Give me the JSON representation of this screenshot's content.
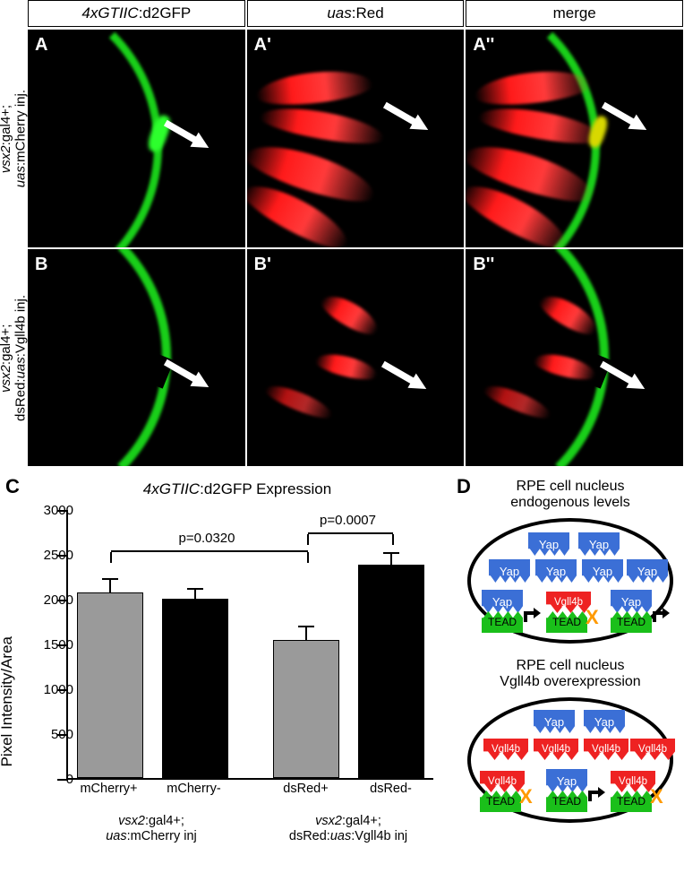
{
  "columns": [
    {
      "label_italic": "4xGTIIC",
      "label_plain": ":d2GFP"
    },
    {
      "label_italic": "uas",
      "label_plain": ":Red"
    },
    {
      "label_italic": "",
      "label_plain": "merge"
    }
  ],
  "rows": [
    {
      "label_html": "<span class='it'>vsx2</span>:gal4+;<br><span class='it'>uas</span>:mCherry inj.",
      "panels": [
        "A",
        "A'",
        "A''"
      ],
      "green": true,
      "red": true
    },
    {
      "label_html": "<span class='it'>vsx2</span>:gal4+;<br>dsRed:<span class='it'>uas</span>:Vgll4b inj.",
      "panels": [
        "B",
        "B'",
        "B''"
      ],
      "green": true,
      "red": true
    }
  ],
  "chart": {
    "letter": "C",
    "title_italic": "4xGTIIC",
    "title_plain": ":d2GFP Expression",
    "y_label": "Pixel Intensity/Area",
    "y_max": 3000,
    "y_ticks": [
      0,
      500,
      1000,
      1500,
      2000,
      2500,
      3000
    ],
    "bars": [
      {
        "label": "mCherry+",
        "value": 2075,
        "err": 160,
        "fill": "#9a9a9a"
      },
      {
        "label": "mCherry-",
        "value": 2000,
        "err": 120,
        "fill": "#000000"
      },
      {
        "label": "dsRed+",
        "value": 1540,
        "err": 160,
        "fill": "#9a9a9a"
      },
      {
        "label": "dsRed-",
        "value": 2380,
        "err": 140,
        "fill": "#000000"
      }
    ],
    "group_sub": [
      "<span class='it'>vsx2</span>:gal4+;<br><span class='it'>uas</span>:mCherry inj",
      "<span class='it'>vsx2</span>:gal4+;<br>dsRed:<span class='it'>uas</span>:Vgll4b inj"
    ],
    "sig": [
      {
        "text": "p=0.0320",
        "from_bar": 0,
        "to_bar": 2,
        "y": 2560
      },
      {
        "text": "p=0.0007",
        "from_bar": 2,
        "to_bar": 3,
        "y": 2760
      }
    ]
  },
  "diagram": {
    "letter": "D",
    "top_title": "RPE cell nucleus<br>endogenous levels",
    "bottom_title": "RPE cell nucleus<br>Vgll4b overexpression",
    "labels": {
      "yap": "Yap",
      "vgll": "Vgll4b",
      "tead": "TEAD"
    },
    "colors": {
      "yap": "#3b6fd6",
      "vgll": "#e22222",
      "tead": "#1abf1a",
      "x": "#ff9a00"
    }
  }
}
